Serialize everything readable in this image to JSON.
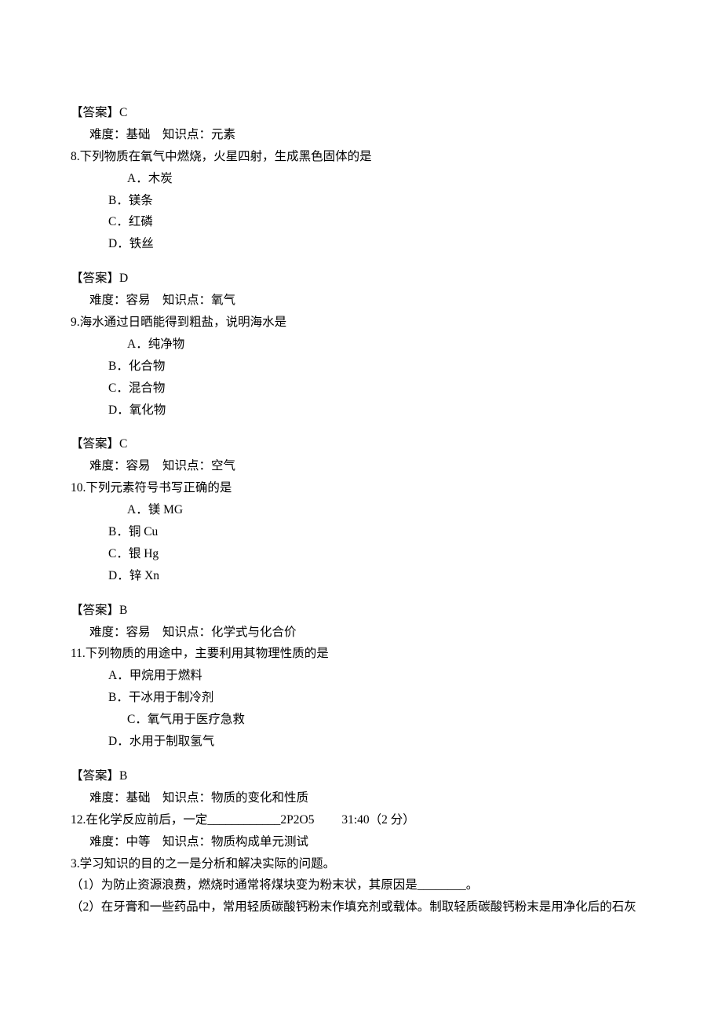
{
  "lines": [
    {
      "cls": "line",
      "key": "q7.answer"
    },
    {
      "cls": "line indent-1",
      "key": "q7.meta"
    },
    {
      "cls": "line",
      "key": "q8.stem"
    },
    {
      "cls": "line indent-3",
      "key": "q8.a"
    },
    {
      "cls": "line indent-2",
      "key": "q8.b"
    },
    {
      "cls": "line indent-2",
      "key": "q8.c"
    },
    {
      "cls": "line indent-2",
      "key": "q8.d"
    },
    {
      "cls": "spacer"
    },
    {
      "cls": "line",
      "key": "q8.answer"
    },
    {
      "cls": "line indent-1",
      "key": "q8.meta"
    },
    {
      "cls": "line",
      "key": "q9.stem"
    },
    {
      "cls": "line indent-3",
      "key": "q9.a"
    },
    {
      "cls": "line indent-2",
      "key": "q9.b"
    },
    {
      "cls": "line indent-2",
      "key": "q9.c"
    },
    {
      "cls": "line indent-2",
      "key": "q9.d"
    },
    {
      "cls": "spacer"
    },
    {
      "cls": "line",
      "key": "q9.answer"
    },
    {
      "cls": "line indent-1",
      "key": "q9.meta"
    },
    {
      "cls": "line",
      "key": "q10.stem"
    },
    {
      "cls": "line indent-3",
      "key": "q10.a"
    },
    {
      "cls": "line indent-2",
      "key": "q10.b"
    },
    {
      "cls": "line indent-2",
      "key": "q10.c"
    },
    {
      "cls": "line indent-2",
      "key": "q10.d"
    },
    {
      "cls": "spacer"
    },
    {
      "cls": "line",
      "key": "q10.answer"
    },
    {
      "cls": "line indent-1",
      "key": "q10.meta"
    },
    {
      "cls": "line",
      "key": "q11.stem"
    },
    {
      "cls": "line indent-2",
      "key": "q11.a"
    },
    {
      "cls": "line indent-2",
      "key": "q11.b"
    },
    {
      "cls": "line indent-3",
      "key": "q11.c"
    },
    {
      "cls": "line indent-2",
      "key": "q11.d"
    },
    {
      "cls": "spacer"
    },
    {
      "cls": "line",
      "key": "q11.answer"
    },
    {
      "cls": "line indent-1",
      "key": "q11.meta"
    },
    {
      "cls": "line",
      "key": "q12.stem"
    },
    {
      "cls": "line indent-1",
      "key": "q12.meta"
    },
    {
      "cls": "line",
      "key": "q3.stem"
    },
    {
      "cls": "line",
      "key": "q3.p1"
    },
    {
      "cls": "line",
      "key": "q3.p2"
    }
  ],
  "q7": {
    "answer": "【答案】C",
    "meta": "难度：基础    知识点：元素"
  },
  "q8": {
    "stem": "8.下列物质在氧气中燃烧，火星四射，生成黑色固体的是",
    "a": "A．木炭",
    "b": "B．镁条",
    "c": "C．红磷",
    "d": "D．铁丝",
    "answer": "【答案】D",
    "meta": "难度：容易    知识点：氧气"
  },
  "q9": {
    "stem": "9.海水通过日晒能得到粗盐，说明海水是",
    "a": "A．纯净物",
    "b": "B．化合物",
    "c": "C．混合物",
    "d": "D．氧化物",
    "answer": "【答案】C",
    "meta": "难度：容易    知识点：空气"
  },
  "q10": {
    "stem": "10.下列元素符号书写正确的是",
    "a": "A．镁 MG",
    "b": "B．铜 Cu",
    "c": "C．银 Hg",
    "d": "D．锌 Xn",
    "answer": "【答案】B",
    "meta": "难度：容易    知识点：化学式与化合价"
  },
  "q11": {
    "stem": "11.下列物质的用途中，主要利用其物理性质的是",
    "a": "A．甲烷用于燃料",
    "b": "B．干冰用于制冷剂",
    "c": "C．氧气用于医疗急救",
    "d": "D．水用于制取氢气",
    "answer": "【答案】B",
    "meta": "难度：基础    知识点：物质的变化和性质"
  },
  "q12": {
    "stem": "12.在化学反应前后，一定____________2P2O5         31:40（2 分）",
    "meta": "难度：中等    知识点：物质构成单元测试"
  },
  "q3": {
    "stem": "3.学习知识的目的之一是分析和解决实际的问题。",
    "p1": "（1）为防止资源浪费，燃烧时通常将煤块变为粉末状，其原因是________。",
    "p2": "（2）在牙膏和一些药品中，常用轻质碳酸钙粉末作填充剂或载体。制取轻质碳酸钙粉末是用净化后的石灰"
  }
}
